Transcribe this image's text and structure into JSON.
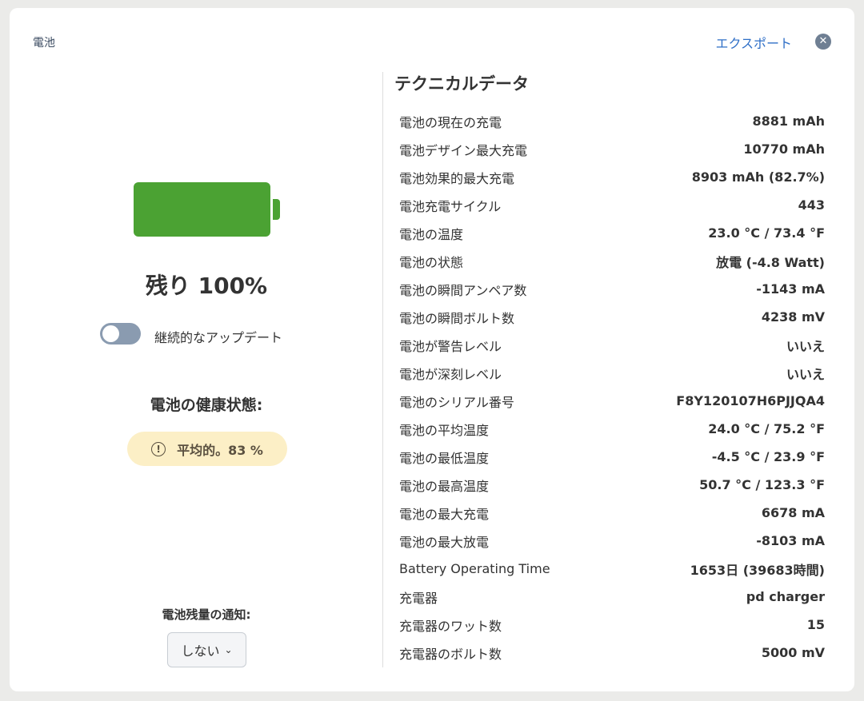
{
  "header": {
    "title": "電池",
    "export_label": "エクスポート",
    "close_icon": "close-icon"
  },
  "battery": {
    "level_percent": 100,
    "color": "#4ba233",
    "remaining_label": "残り 100%"
  },
  "continuous_update": {
    "label": "継続的なアップデート",
    "enabled": false
  },
  "health": {
    "title": "電池の健康状態:",
    "badge": "平均的。83 %",
    "badge_color": "#fcefc6",
    "icon": "warning-circle-icon"
  },
  "notification": {
    "label": "電池残量の通知:",
    "selected": "しない"
  },
  "tech": {
    "title": "テクニカルデータ",
    "rows": [
      {
        "k": "電池の現在の充電",
        "v": "8881 mAh"
      },
      {
        "k": "電池デザイン最大充電",
        "v": "10770 mAh"
      },
      {
        "k": "電池効果的最大充電",
        "v": "8903 mAh (82.7%)"
      },
      {
        "k": "電池充電サイクル",
        "v": "443"
      },
      {
        "k": "電池の温度",
        "v": "23.0 °C / 73.4 °F"
      },
      {
        "k": "電池の状態",
        "v": "放電 (-4.8 Watt)"
      },
      {
        "k": "電池の瞬間アンペア数",
        "v": "-1143 mA"
      },
      {
        "k": "電池の瞬間ボルト数",
        "v": "4238 mV"
      },
      {
        "k": "電池が警告レベル",
        "v": "いいえ"
      },
      {
        "k": "電池が深刻レベル",
        "v": "いいえ"
      },
      {
        "k": "電池のシリアル番号",
        "v": "F8Y120107H6PJJQA4"
      },
      {
        "k": "電池の平均温度",
        "v": "24.0 °C / 75.2 °F"
      },
      {
        "k": "電池の最低温度",
        "v": "-4.5 °C / 23.9 °F"
      },
      {
        "k": "電池の最高温度",
        "v": "50.7 °C / 123.3 °F"
      },
      {
        "k": "電池の最大充電",
        "v": "6678 mA"
      },
      {
        "k": "電池の最大放電",
        "v": "-8103 mA"
      },
      {
        "k": "Battery Operating Time",
        "v": "1653日 (39683時間)"
      },
      {
        "k": "充電器",
        "v": "pd charger"
      },
      {
        "k": "充電器のワット数",
        "v": "15"
      },
      {
        "k": "充電器のボルト数",
        "v": "5000 mV"
      }
    ]
  }
}
